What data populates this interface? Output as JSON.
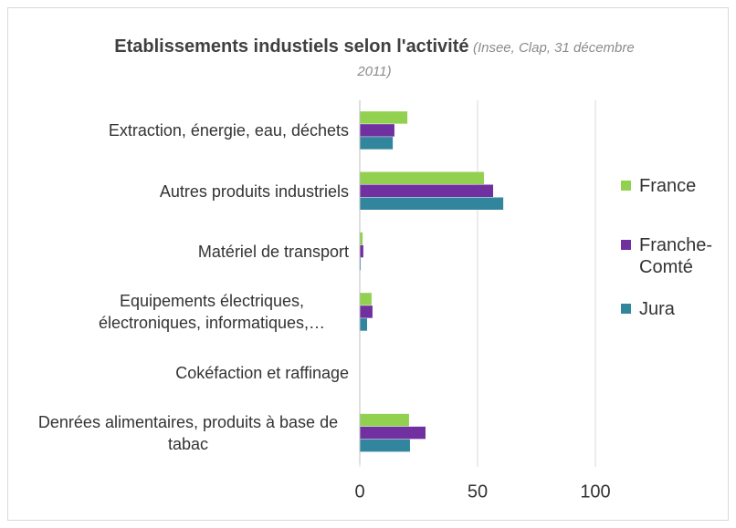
{
  "chart_data": {
    "type": "hbar",
    "title": "Etablissements industiels selon l'activité",
    "subtitle": "(Insee, Clap, 31 décembre 2011)",
    "categories": [
      "Extraction, énergie, eau, déchets",
      "Autres produits industriels",
      "Matériel de transport",
      "Equipements électriques, électroniques, informatiques,…",
      "Cokéfaction et raffinage",
      "Denrées alimentaires, produits à base de tabac"
    ],
    "series": [
      {
        "name": "France",
        "color": "#92d050",
        "values": [
          20.2,
          52.7,
          1.2,
          5,
          0,
          20.9
        ]
      },
      {
        "name": "Franche-Comté",
        "color": "#7030a0",
        "values": [
          14.7,
          56.6,
          1.5,
          5.4,
          0,
          27.9
        ]
      },
      {
        "name": "Jura",
        "color": "#31859c",
        "values": [
          14,
          60.9,
          0.4,
          3.1,
          0,
          21.3
        ]
      }
    ],
    "xlim": [
      0,
      100
    ],
    "xticks": [
      0,
      50,
      100
    ],
    "grid": true,
    "legend": "right"
  }
}
